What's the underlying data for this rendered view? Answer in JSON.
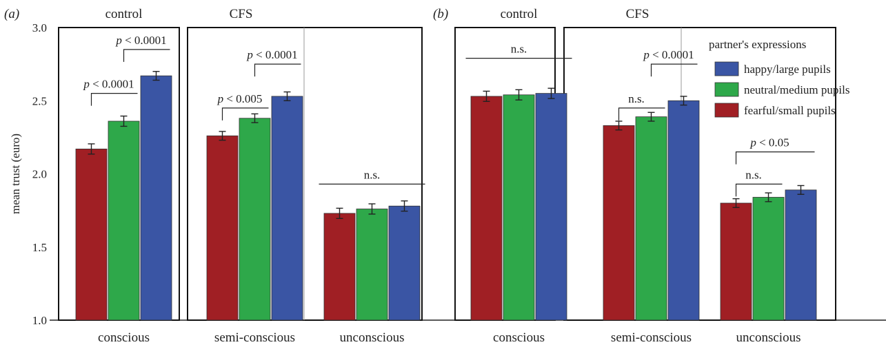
{
  "chart_data": {
    "type": "bar",
    "ylabel": "mean trust (euro)",
    "ylim": [
      1.0,
      3.0
    ],
    "yticks": [
      "1.0",
      "1.5",
      "2.0",
      "2.5",
      "3.0"
    ],
    "series_names": [
      "happy/large pupils",
      "neutral/medium pupils",
      "fearful/small pupils"
    ],
    "series_colors": {
      "fearful": "#a01f24",
      "neutral": "#2ea84a",
      "happy": "#3a55a4"
    },
    "legend": {
      "title": "partner's expressions",
      "placement": "top-right of panel b"
    },
    "panels": [
      {
        "label": "(a)",
        "groups": [
          {
            "header": "control",
            "condition": "conscious",
            "values": [
              2.17,
              2.36,
              2.67
            ],
            "errors": [
              0.035,
              0.035,
              0.03
            ]
          },
          {
            "header": "CFS",
            "condition": "semi-conscious",
            "values": [
              2.26,
              2.38,
              2.53
            ],
            "errors": [
              0.03,
              0.03,
              0.03
            ]
          },
          {
            "header": "",
            "condition": "unconscious",
            "values": [
              1.73,
              1.76,
              1.78
            ],
            "errors": [
              0.035,
              0.035,
              0.035
            ]
          }
        ],
        "annotations": [
          {
            "text": "p < 0.0001",
            "group": 0,
            "from": 1,
            "to": 2,
            "y": 2.85
          },
          {
            "text": "p < 0.0001",
            "group": 0,
            "from": 0,
            "to": 1,
            "y": 2.55
          },
          {
            "text": "p < 0.0001",
            "group": 1,
            "from": 1,
            "to": 2,
            "y": 2.75
          },
          {
            "text": "p < 0.005",
            "group": 1,
            "from": 0,
            "to": 1,
            "y": 2.45
          },
          {
            "text": "n.s.",
            "group": 2,
            "from": 0,
            "to": 2,
            "y": 1.93
          }
        ]
      },
      {
        "label": "(b)",
        "groups": [
          {
            "header": "control",
            "condition": "conscious",
            "values": [
              2.53,
              2.54,
              2.55
            ],
            "errors": [
              0.035,
              0.035,
              0.035
            ]
          },
          {
            "header": "CFS",
            "condition": "semi-conscious",
            "values": [
              2.33,
              2.39,
              2.5
            ],
            "errors": [
              0.03,
              0.03,
              0.03
            ]
          },
          {
            "header": "",
            "condition": "unconscious",
            "values": [
              1.8,
              1.84,
              1.89
            ],
            "errors": [
              0.03,
              0.03,
              0.03
            ]
          }
        ],
        "annotations": [
          {
            "text": "n.s.",
            "group": 0,
            "from": 0,
            "to": 2,
            "y": 2.79
          },
          {
            "text": "p < 0.0001",
            "group": 1,
            "from": 1,
            "to": 2,
            "y": 2.75
          },
          {
            "text": "n.s.",
            "group": 1,
            "from": 0,
            "to": 1,
            "y": 2.45
          },
          {
            "text": "p < 0.05",
            "group": 2,
            "from": 0,
            "to": 2,
            "y": 2.15
          },
          {
            "text": "n.s.",
            "group": 2,
            "from": 0,
            "to": 1,
            "y": 1.93
          }
        ]
      }
    ]
  }
}
